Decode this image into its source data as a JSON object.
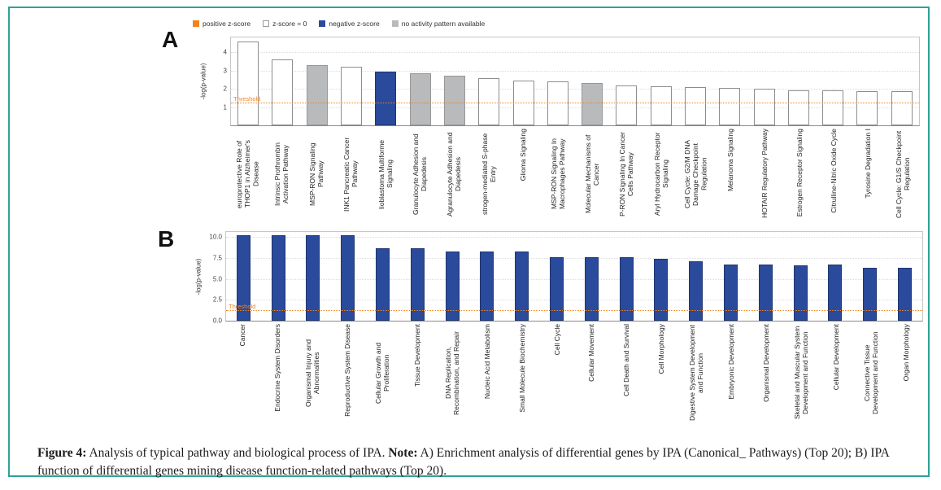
{
  "colors": {
    "frame_border": "#2da297",
    "positive": "#f0831e",
    "zero": "#ffffff",
    "negative": "#2a4a9c",
    "no_activity": "#b9babc",
    "threshold": "#f0831e"
  },
  "caption": {
    "fig_label": "Figure 4:",
    "text_1": " Analysis of typical pathway and biological process of IPA. ",
    "note_label": "Note:",
    "text_2": " A) Enrichment analysis of differential genes by IPA (Canonical_ Pathways) (Top 20); B) IPA function of differential genes mining disease function-related pathways (Top 20)."
  },
  "chart_data": [
    {
      "type": "bar",
      "panel_label": "A",
      "ylabel": "-log(p-value)",
      "ylim": [
        0,
        4.8
      ],
      "grid": true,
      "legend_position": "top",
      "yticks": [
        {
          "label": "1",
          "value": 1
        },
        {
          "label": "2",
          "value": 2
        },
        {
          "label": "3",
          "value": 3
        },
        {
          "label": "4",
          "value": 4
        }
      ],
      "threshold": {
        "label": "Threshold",
        "value": 1.25
      },
      "legend": [
        {
          "label": "positive z-score",
          "type": "positive"
        },
        {
          "label": "z-score = 0",
          "type": "zero"
        },
        {
          "label": "negative z-score",
          "type": "negative"
        },
        {
          "label": "no activity pattern available",
          "type": "no_activity"
        }
      ],
      "categories": [
        "europrotective Role of THOP1 in Alzheimer's Disease",
        "Intrinsic Prothrombin Activation Pathway",
        "MSP-RON Signaling Pathway",
        "INK1 Pancreatic Cancer Pathway",
        "lioblastoma Multiforme Signaling",
        "Granulocyte Adhesion and Diapedesis",
        "Agranulocyte Adhesion and Diapedesis",
        "strogen-mediated S-phase Entry",
        "Glioma Signaling",
        "MSP-RON Signaling In Macrophages Pathway",
        "Molecular Mechanisms of Cancer",
        "P-RON Signaling In Cancer Cells Pathway",
        "Aryl Hydrocarbon Receptor Signaling",
        "Cell Cycle: G2/M DNA Damage Checkpoint Regulation",
        "Melanoma Signaling",
        "HOTAIR Regulatory Pathway",
        "Estrogen Receptor Signaling",
        "Citrulline-Nitric Oxide Cycle",
        "Tyrosine Degradation I",
        "Cell Cycle: G1/S Checkpoint Regulation"
      ],
      "values": [
        4.6,
        3.6,
        3.3,
        3.2,
        2.95,
        2.85,
        2.7,
        2.6,
        2.45,
        2.4,
        2.3,
        2.2,
        2.15,
        2.1,
        2.05,
        2.0,
        1.9,
        1.9,
        1.85,
        1.85
      ],
      "bar_types": [
        "zero",
        "zero",
        "no_activity",
        "zero",
        "negative",
        "no_activity",
        "no_activity",
        "zero",
        "zero",
        "zero",
        "no_activity",
        "zero",
        "zero",
        "zero",
        "zero",
        "zero",
        "zero",
        "zero",
        "zero",
        "zero"
      ]
    },
    {
      "type": "bar",
      "panel_label": "B",
      "ylabel": "-log(p-value)",
      "ylim": [
        0,
        10.6
      ],
      "grid": true,
      "yticks": [
        {
          "label": "0.0",
          "value": 0
        },
        {
          "label": "2.5",
          "value": 2.5
        },
        {
          "label": "5.0",
          "value": 5
        },
        {
          "label": "7.5",
          "value": 7.5
        },
        {
          "label": "10.0",
          "value": 10
        }
      ],
      "threshold": {
        "label": "Threshold",
        "value": 1.3
      },
      "bar_color": "negative",
      "categories": [
        "Cancer",
        "Endocrine System Disorders",
        "Organismal Injury and Abnormalities",
        "Reproductive System Disease",
        "Cellular Growth and Proliferation",
        "Tissue Development",
        "DNA Replication, Recombination, and Repair",
        "Nucleic Acid Metabolism",
        "Small Molecule Biochemistry",
        "Cell Cycle",
        "Cellular Movement",
        "Cell Death and Survival",
        "Cell Morphology",
        "Digestive System Development and Function",
        "Embryonic Development",
        "Organismal Development",
        "Skeletal and Muscular System Development and Function",
        "Cellular Development",
        "Connective Tissue Development and Function",
        "Organ Morphology"
      ],
      "values": [
        10.2,
        10.2,
        10.2,
        10.2,
        8.7,
        8.7,
        8.3,
        8.3,
        8.3,
        7.6,
        7.6,
        7.6,
        7.4,
        7.1,
        6.7,
        6.7,
        6.6,
        6.7,
        6.3,
        6.3
      ]
    }
  ]
}
